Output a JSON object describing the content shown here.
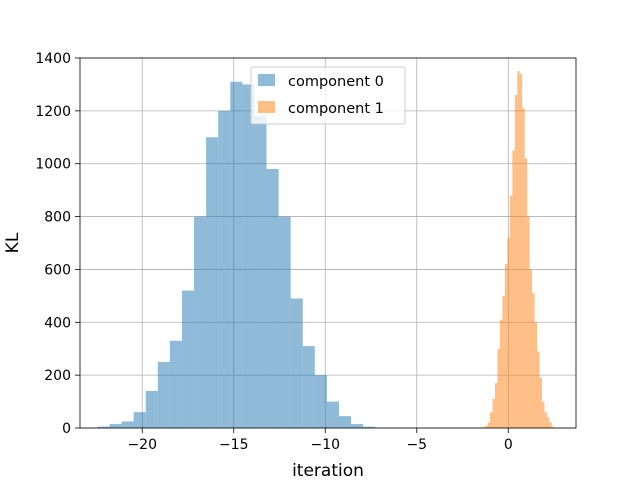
{
  "chart_data": {
    "type": "histogram",
    "xlabel": "iteration",
    "ylabel": "KL",
    "xlim": [
      -23.4,
      3.7
    ],
    "ylim": [
      0,
      1400
    ],
    "xticks": [
      -20,
      -15,
      -10,
      -5,
      0
    ],
    "xtick_labels": [
      "−20",
      "−15",
      "−10",
      "−5",
      "0"
    ],
    "yticks": [
      0,
      200,
      400,
      600,
      800,
      1000,
      1200,
      1400
    ],
    "ytick_labels": [
      "0",
      "200",
      "400",
      "600",
      "800",
      "1000",
      "1200",
      "1400"
    ],
    "grid": true,
    "legend_position": "upper-center",
    "series": [
      {
        "name": "component 0",
        "color": "#1f77b4",
        "alpha": 0.5,
        "bin_start": -22.45,
        "bin_width": 0.66,
        "counts": [
          5,
          15,
          25,
          60,
          140,
          250,
          330,
          520,
          800,
          1100,
          1200,
          1310,
          1300,
          1180,
          980,
          800,
          490,
          310,
          200,
          100,
          45,
          15,
          5
        ]
      },
      {
        "name": "component 1",
        "color": "#ff7f0e",
        "alpha": 0.5,
        "bin_start": -1.4,
        "bin_width": 0.135,
        "counts": [
          3,
          8,
          20,
          60,
          110,
          170,
          300,
          410,
          500,
          620,
          720,
          880,
          1050,
          1260,
          1350,
          1340,
          1210,
          1020,
          800,
          600,
          510,
          400,
          290,
          190,
          100,
          60,
          40,
          20,
          5
        ]
      }
    ]
  }
}
